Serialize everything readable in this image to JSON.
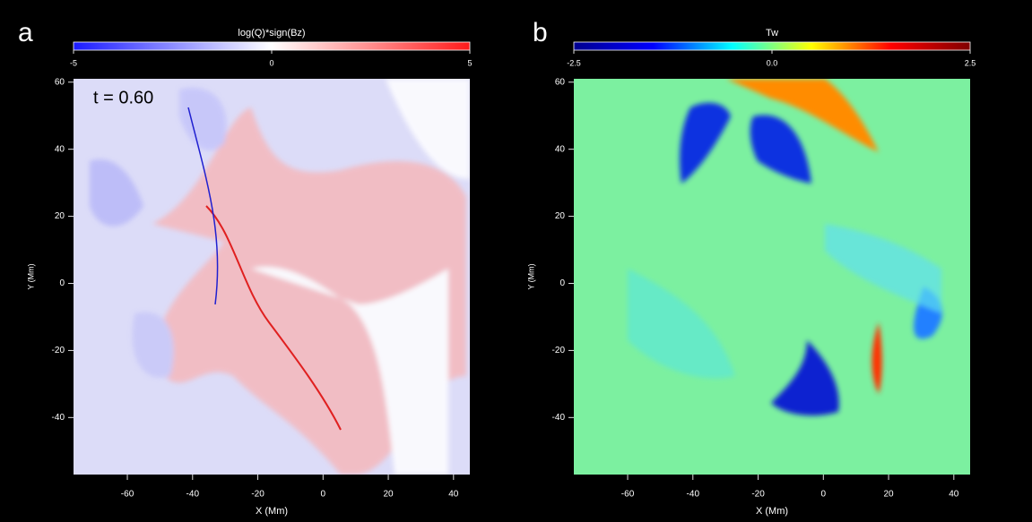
{
  "chart_data": [
    {
      "type": "heatmap",
      "panel_label": "a",
      "colorbar_title": "log(Q)*sign(Bz)",
      "colormap": [
        "#1a1aff",
        "#ffffff",
        "#ff1a1a"
      ],
      "clim": [
        -5,
        5
      ],
      "cticks": [
        -5,
        0,
        5
      ],
      "annotation": "t = 0.60",
      "xlabel": "X (Mm)",
      "ylabel": "Y (Mm)",
      "xlim": [
        -76.5,
        45
      ],
      "xticks": [
        -60,
        -40,
        -20,
        0,
        20,
        40
      ],
      "ylim": [
        -57,
        61
      ],
      "yticks": [
        -40,
        -20,
        0,
        20,
        40,
        60
      ]
    },
    {
      "type": "heatmap",
      "panel_label": "b",
      "colorbar_title": "Tw",
      "colormap": [
        "#00008f",
        "#0000ff",
        "#00ffff",
        "#ffff00",
        "#ff0000",
        "#800000"
      ],
      "clim": [
        -2.5,
        2.5
      ],
      "cticks": [
        -2.5,
        {
          "value": 0,
          "label": "0.0"
        },
        2.5
      ],
      "xlabel": "X (Mm)",
      "ylabel": "Y (Mm)",
      "xlim": [
        -76.5,
        45
      ],
      "xticks": [
        -60,
        -40,
        -20,
        0,
        20,
        40
      ],
      "ylim": [
        -57,
        61
      ],
      "yticks": [
        -40,
        -20,
        0,
        20,
        40,
        60
      ]
    }
  ]
}
